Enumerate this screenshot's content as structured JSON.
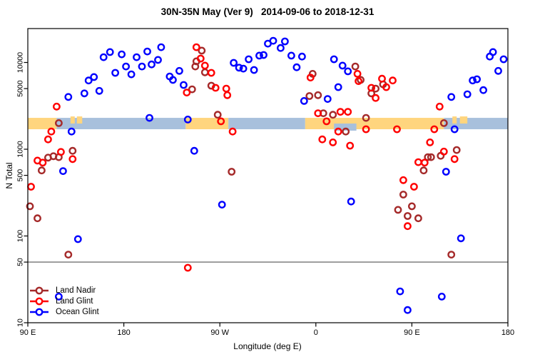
{
  "title": "30N-35N May (Ver 9)   2014-09-06 to 2018-12-31",
  "chart_data": {
    "type": "scatter",
    "title": "30N-35N May (Ver 9)   2014-09-06 to 2018-12-31",
    "xlabel": "Longitude (deg E)",
    "ylabel": "N Total",
    "x_axis": {
      "note": "continuous degrees east from 90E wrapping through 180, 90W, 0 back to 180",
      "range": [
        90,
        540
      ],
      "ticks": [
        {
          "lon": 90,
          "label": "90 E"
        },
        {
          "lon": 180,
          "label": "180"
        },
        {
          "lon": 270,
          "label": "90 W"
        },
        {
          "lon": 360,
          "label": "0"
        },
        {
          "lon": 450,
          "label": "90 E"
        },
        {
          "lon": 540,
          "label": "180"
        }
      ]
    },
    "y_axis": {
      "scale": "log",
      "range": [
        10,
        25000
      ],
      "ticks": [
        {
          "value": 10,
          "label": "10"
        },
        {
          "value": 50,
          "label": "50"
        },
        {
          "value": 100,
          "label": "100"
        },
        {
          "value": 500,
          "label": "500"
        },
        {
          "value": 1000,
          "label": "1000"
        },
        {
          "value": 5000,
          "label": "5000"
        },
        {
          "value": 10000,
          "label": "10000"
        }
      ]
    },
    "reference_line": {
      "value": 50,
      "color": "#888888"
    },
    "band": {
      "description": "land/ocean map strip drawn across the plot",
      "value_top": 2300,
      "value_bottom": 1700,
      "land_color": "#FFD57E",
      "ocean_color": "#A8C0DC",
      "segments": [
        {
          "lon_from": 90,
          "lon_to": 117,
          "surface": "land"
        },
        {
          "lon_from": 117,
          "lon_to": 238,
          "surface": "ocean"
        },
        {
          "lon_from": 238,
          "lon_to": 278,
          "surface": "land"
        },
        {
          "lon_from": 278,
          "lon_to": 350,
          "surface": "ocean"
        },
        {
          "lon_from": 350,
          "lon_to": 480,
          "surface": "land"
        },
        {
          "lon_from": 480,
          "lon_to": 540,
          "surface": "ocean"
        }
      ],
      "speckles": [
        {
          "lon_from": 130,
          "lon_to": 134,
          "surface": "land",
          "half": "top"
        },
        {
          "lon_from": 136,
          "lon_to": 141,
          "surface": "land",
          "half": "top"
        },
        {
          "lon_from": 488,
          "lon_to": 492,
          "surface": "land",
          "half": "top"
        },
        {
          "lon_from": 495,
          "lon_to": 502,
          "surface": "land",
          "half": "top"
        },
        {
          "lon_from": 377,
          "lon_to": 398,
          "surface": "ocean",
          "half": "bottom"
        }
      ]
    },
    "legend": {
      "position": "bottom-left"
    },
    "series": [
      {
        "name": "Land Nadir",
        "color": "#A52A2A",
        "points": [
          [
            253,
            13700
          ],
          [
            248,
            10300
          ],
          [
            247,
            9000
          ],
          [
            256,
            7700
          ],
          [
            262,
            5400
          ],
          [
            244,
            4900
          ],
          [
            268,
            2500
          ],
          [
            357,
            7400
          ],
          [
            354,
            4100
          ],
          [
            362,
            4200
          ],
          [
            367,
            2600
          ],
          [
            376,
            2500
          ],
          [
            397,
            9000
          ],
          [
            402,
            6300
          ],
          [
            423,
            5600
          ],
          [
            416,
            5000
          ],
          [
            412,
            4400
          ],
          [
            407,
            2300
          ],
          [
            480,
            2000
          ],
          [
            119,
            2000
          ],
          [
            132,
            960
          ],
          [
            119,
            810
          ],
          [
            114,
            830
          ],
          [
            109,
            800
          ],
          [
            103,
            570
          ],
          [
            92,
            220
          ],
          [
            99,
            160
          ],
          [
            128,
            61
          ],
          [
            281,
            550
          ],
          [
            388,
            1600
          ],
          [
            492,
            980
          ],
          [
            465,
            810
          ],
          [
            468,
            810
          ],
          [
            477,
            840
          ],
          [
            461,
            570
          ],
          [
            442,
            300
          ],
          [
            450,
            220
          ],
          [
            437,
            200
          ],
          [
            446,
            170
          ],
          [
            456,
            160
          ],
          [
            487,
            61
          ]
        ]
      },
      {
        "name": "Land Glint",
        "color": "#FF0000",
        "points": [
          [
            117,
            3100
          ],
          [
            248,
            15000
          ],
          [
            252,
            11100
          ],
          [
            256,
            9200
          ],
          [
            262,
            7600
          ],
          [
            239,
            4500
          ],
          [
            266,
            5100
          ],
          [
            276,
            5000
          ],
          [
            277,
            4200
          ],
          [
            271,
            2100
          ],
          [
            355,
            6700
          ],
          [
            362,
            2600
          ],
          [
            383,
            2700
          ],
          [
            390,
            2700
          ],
          [
            399,
            7400
          ],
          [
            400,
            6100
          ],
          [
            422,
            6500
          ],
          [
            432,
            6200
          ],
          [
            426,
            5200
          ],
          [
            412,
            5100
          ],
          [
            416,
            3900
          ],
          [
            476,
            3100
          ],
          [
            112,
            1600
          ],
          [
            370,
            2100
          ],
          [
            407,
            1700
          ],
          [
            436,
            1700
          ],
          [
            471,
            1700
          ],
          [
            392,
            1100
          ],
          [
            109,
            1300
          ],
          [
            121,
            930
          ],
          [
            99,
            740
          ],
          [
            104,
            700
          ],
          [
            132,
            770
          ],
          [
            93,
            370
          ],
          [
            282,
            1600
          ],
          [
            366,
            1300
          ],
          [
            376,
            1200
          ],
          [
            381,
            1600
          ],
          [
            240,
            43
          ],
          [
            467,
            1200
          ],
          [
            480,
            940
          ],
          [
            456,
            710
          ],
          [
            462,
            700
          ],
          [
            490,
            770
          ],
          [
            442,
            440
          ],
          [
            452,
            370
          ],
          [
            446,
            130
          ]
        ]
      },
      {
        "name": "Ocean Glint",
        "color": "#0000FF",
        "points": [
          [
            128,
            4000
          ],
          [
            143,
            4400
          ],
          [
            147,
            6200
          ],
          [
            152,
            6800
          ],
          [
            157,
            4700
          ],
          [
            161,
            11500
          ],
          [
            167,
            13200
          ],
          [
            172,
            7600
          ],
          [
            178,
            12400
          ],
          [
            182,
            9000
          ],
          [
            187,
            7300
          ],
          [
            192,
            11500
          ],
          [
            197,
            9000
          ],
          [
            202,
            13400
          ],
          [
            206,
            9500
          ],
          [
            212,
            10700
          ],
          [
            215,
            15000
          ],
          [
            223,
            6900
          ],
          [
            226,
            6300
          ],
          [
            232,
            8000
          ],
          [
            236,
            5500
          ],
          [
            283,
            9900
          ],
          [
            288,
            8700
          ],
          [
            292,
            8500
          ],
          [
            297,
            10900
          ],
          [
            302,
            8200
          ],
          [
            307,
            12000
          ],
          [
            311,
            12200
          ],
          [
            315,
            16500
          ],
          [
            320,
            17800
          ],
          [
            327,
            14700
          ],
          [
            331,
            17500
          ],
          [
            337,
            12000
          ],
          [
            342,
            8800
          ],
          [
            347,
            11700
          ],
          [
            349,
            3600
          ],
          [
            371,
            3800
          ],
          [
            377,
            10900
          ],
          [
            381,
            5200
          ],
          [
            385,
            9200
          ],
          [
            390,
            7900
          ],
          [
            487,
            4000
          ],
          [
            502,
            4300
          ],
          [
            517,
            4800
          ],
          [
            507,
            6200
          ],
          [
            511,
            6400
          ],
          [
            523,
            11700
          ],
          [
            526,
            13200
          ],
          [
            536,
            10900
          ],
          [
            531,
            8000
          ],
          [
            240,
            2200
          ],
          [
            204,
            2300
          ],
          [
            131,
            1600
          ],
          [
            490,
            1700
          ],
          [
            246,
            960
          ],
          [
            272,
            230
          ],
          [
            123,
            560
          ],
          [
            137,
            92
          ],
          [
            393,
            250
          ],
          [
            482,
            550
          ],
          [
            496,
            94
          ],
          [
            439,
            23
          ],
          [
            478,
            20
          ],
          [
            446,
            14
          ],
          [
            119,
            20
          ]
        ]
      }
    ]
  }
}
